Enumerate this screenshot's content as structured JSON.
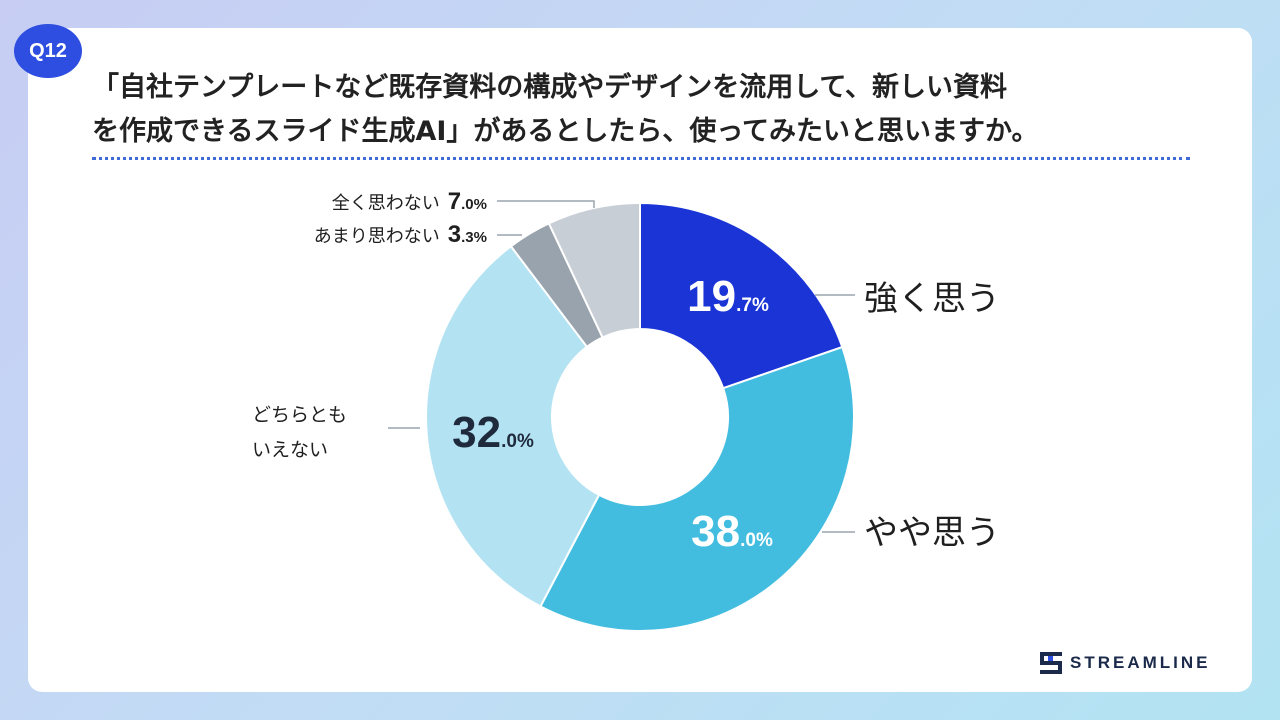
{
  "badge": "Q12",
  "question": {
    "line1": "「自社テンプレートなど既存資料の構成やデザインを流用して、新しい資料",
    "line2": "を作成できるスライド生成AI」があるとしたら、使ってみたいと思いますか。"
  },
  "brand": "STREAMLINE",
  "colors": {
    "accent": "#2d4ee0",
    "strong": "#1a34d6",
    "somewhat": "#42bde0",
    "neutral": "#b3e3f3",
    "not_much": "#98a3ad",
    "not_at_all": "#c8ced6"
  },
  "chart_data": {
    "type": "pie",
    "donut": true,
    "start": "12 o'clock, clockwise",
    "categories": [
      "強く思う",
      "やや思う",
      "どちらともいえない",
      "あまり思わない",
      "全く思わない"
    ],
    "values": [
      19.7,
      38.0,
      32.0,
      3.3,
      7.0
    ],
    "unit": "%",
    "slices": [
      {
        "category": "強く思う",
        "label": "強く思う",
        "value": 19.7,
        "int": "19",
        "dec": ".7%",
        "color": "#1a34d6"
      },
      {
        "category": "やや思う",
        "label": "やや思う",
        "value": 38.0,
        "int": "38",
        "dec": ".0%",
        "color": "#42bde0"
      },
      {
        "category": "どちらともいえない",
        "label_lines": [
          "どちらとも",
          "いえない"
        ],
        "value": 32.0,
        "int": "32",
        "dec": ".0%",
        "color": "#b3e3f3"
      },
      {
        "category": "あまり思わない",
        "label": "あまり思わない",
        "value": 3.3,
        "int": "3",
        "dec": ".3%",
        "color": "#98a3ad"
      },
      {
        "category": "全く思わない",
        "label": "全く思わない",
        "value": 7.0,
        "int": "7",
        "dec": ".0%",
        "color": "#c8ced6"
      }
    ]
  }
}
